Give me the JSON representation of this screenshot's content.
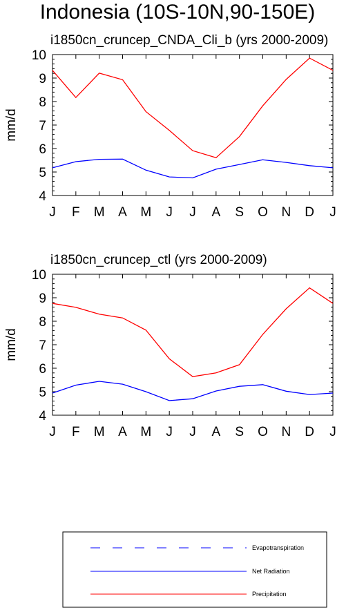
{
  "page": {
    "title": "Indonesia (10S-10N,90-150E)"
  },
  "chart_data": [
    {
      "type": "line",
      "title": "i1850cn_cruncep_CNDA_Cli_b (yrs 2000-2009)",
      "xlabel": "",
      "ylabel": "mm/d",
      "categories": [
        "J",
        "F",
        "M",
        "A",
        "M",
        "J",
        "J",
        "A",
        "S",
        "O",
        "N",
        "D",
        "J"
      ],
      "ylim": [
        4,
        10
      ],
      "yticks": [
        4,
        5,
        6,
        7,
        8,
        9,
        10
      ],
      "series": [
        {
          "name": "Net Radiation",
          "color": "#0000ff",
          "values": [
            5.18,
            5.44,
            5.54,
            5.55,
            5.08,
            4.79,
            4.75,
            5.12,
            5.32,
            5.52,
            5.41,
            5.27,
            5.18
          ]
        },
        {
          "name": "Precipitation",
          "color": "#ff0000",
          "values": [
            9.33,
            8.17,
            9.21,
            8.93,
            7.57,
            6.77,
            5.91,
            5.61,
            6.51,
            7.82,
            8.94,
            9.85,
            9.33
          ]
        }
      ]
    },
    {
      "type": "line",
      "title": "i1850cn_cruncep_ctl (yrs 2000-2009)",
      "xlabel": "",
      "ylabel": "mm/d",
      "categories": [
        "J",
        "F",
        "M",
        "A",
        "M",
        "J",
        "J",
        "A",
        "S",
        "O",
        "N",
        "D",
        "J"
      ],
      "ylim": [
        4,
        10
      ],
      "yticks": [
        4,
        5,
        6,
        7,
        8,
        9,
        10
      ],
      "series": [
        {
          "name": "Net Radiation",
          "color": "#0000ff",
          "values": [
            4.94,
            5.28,
            5.44,
            5.32,
            5.0,
            4.62,
            4.7,
            5.03,
            5.23,
            5.3,
            5.02,
            4.88,
            4.94
          ]
        },
        {
          "name": "Precipitation",
          "color": "#ff0000",
          "values": [
            8.76,
            8.59,
            8.3,
            8.14,
            7.62,
            6.4,
            5.64,
            5.8,
            6.15,
            7.44,
            8.53,
            9.42,
            8.76
          ]
        }
      ]
    }
  ],
  "legend": {
    "items": [
      {
        "label": "Evapotranspiration",
        "color": "#0000ff",
        "style": "dashed"
      },
      {
        "label": "Net Radiation",
        "color": "#0000ff",
        "style": "solid"
      },
      {
        "label": "Precipitation",
        "color": "#ff0000",
        "style": "solid"
      }
    ]
  }
}
